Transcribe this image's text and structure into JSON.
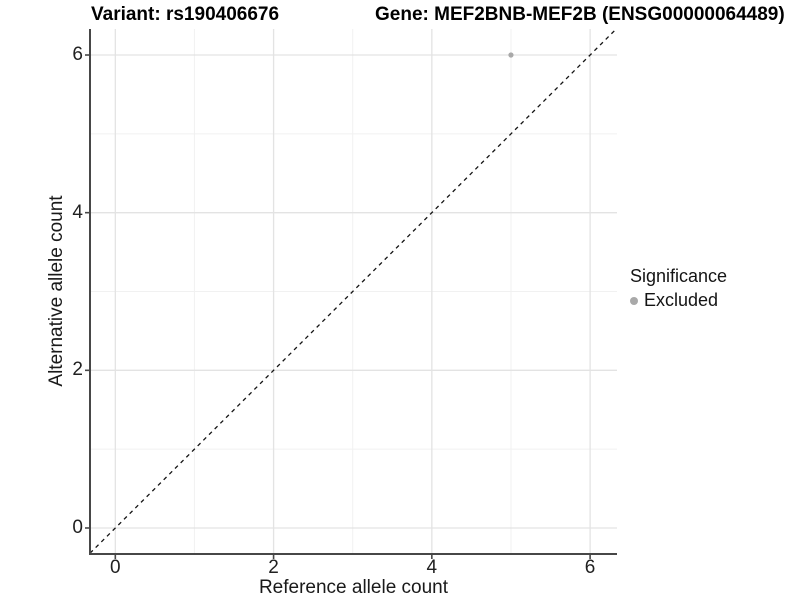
{
  "header": {
    "variant_title": "Variant: rs190406676",
    "gene_title": "Gene: MEF2BNB-MEF2B (ENSG00000064489)"
  },
  "chart_data": {
    "type": "scatter",
    "title_left": "Variant: rs190406676",
    "title_right": "Gene: MEF2BNB-MEF2B (ENSG00000064489)",
    "xlabel": "Reference allele count",
    "ylabel": "Alternative allele count",
    "xlim": [
      -0.32,
      6.34
    ],
    "ylim": [
      -0.33,
      6.33
    ],
    "x_major_ticks": [
      0,
      2,
      4,
      6
    ],
    "x_minor_ticks": [
      1,
      3,
      5
    ],
    "y_major_ticks": [
      0,
      2,
      4,
      6
    ],
    "y_minor_ticks": [
      1,
      3,
      5
    ],
    "grid": true,
    "points": [
      {
        "x": 5,
        "y": 6,
        "series": "Excluded"
      }
    ],
    "reference_line": {
      "type": "identity",
      "slope": 1,
      "intercept": 0,
      "style": "dashed"
    },
    "legend": {
      "title": "Significance",
      "position": "right",
      "items": [
        {
          "label": "Excluded",
          "color": "#a9a9a9",
          "marker": "circle"
        }
      ]
    },
    "colors": {
      "point": "#a9a9a9",
      "axis": "#474747",
      "grid_major": "#e3e3e3",
      "grid_minor": "#f1f1f1",
      "reference_line": "#141414",
      "background": "#ffffff"
    }
  }
}
